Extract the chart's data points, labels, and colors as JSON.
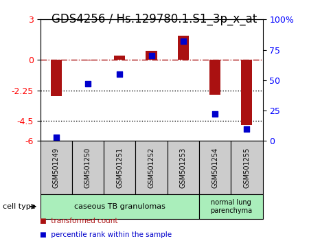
{
  "title": "GDS4256 / Hs.129780.1.S1_3p_x_at",
  "samples": [
    "GSM501249",
    "GSM501250",
    "GSM501251",
    "GSM501252",
    "GSM501253",
    "GSM501254",
    "GSM501255"
  ],
  "transformed_count": [
    -2.7,
    -0.05,
    0.3,
    0.7,
    1.8,
    -2.6,
    -4.8
  ],
  "percentile_rank": [
    3,
    47,
    55,
    70,
    82,
    22,
    10
  ],
  "ylim_left": [
    -6,
    3
  ],
  "ylim_right": [
    0,
    100
  ],
  "left_ticks": [
    3,
    0,
    -2.25,
    -4.5,
    -6
  ],
  "right_ticks": [
    100,
    75,
    50,
    25,
    0
  ],
  "dotted_lines": [
    -2.25,
    -4.5
  ],
  "bar_color": "#AA1111",
  "dot_color": "#0000CC",
  "bar_width": 0.35,
  "group1_label": "caseous TB granulomas",
  "group2_label": "normal lung\nparenchyma",
  "cell_type_label": "cell type",
  "legend_bar_label": "transformed count",
  "legend_dot_label": "percentile rank within the sample",
  "group_bg": "#AAEEBB",
  "sample_box_color": "#CCCCCC",
  "title_fontsize": 12,
  "tick_fontsize": 9
}
